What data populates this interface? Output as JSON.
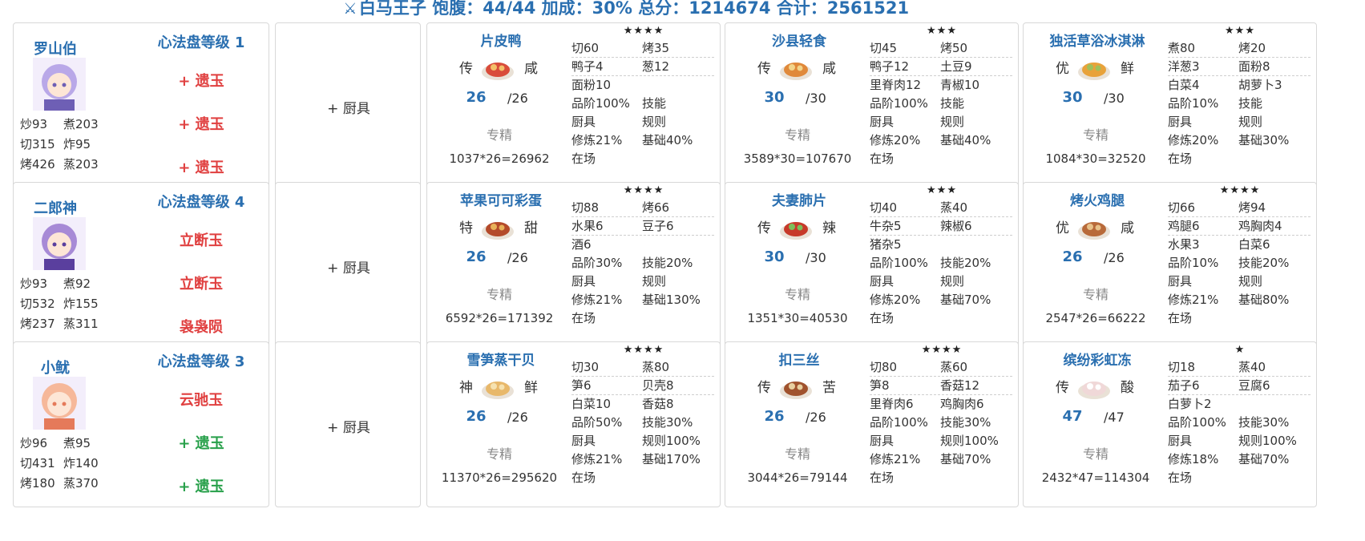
{
  "header": {
    "icon": "sword-icon",
    "text": "白马王子 饱腹：44/44 加成：30% 总分：1214674 合计：2561521"
  },
  "equip_label": "+ 厨具",
  "rows": [
    {
      "chef": {
        "name": "罗山伯",
        "level": "心法盘等级 1",
        "stats": [
          [
            "炒93",
            "煮203"
          ],
          [
            "切315",
            "炸95"
          ],
          [
            "烤426",
            "蒸203"
          ]
        ],
        "slots": [
          {
            "text": "+ 遗玉",
            "color": "red"
          },
          {
            "text": "+ 遗玉",
            "color": "red"
          },
          {
            "text": "+ 遗玉",
            "color": "red"
          }
        ]
      },
      "recipes": [
        {
          "name": "片皮鸭",
          "rarity": "传",
          "flavor": "咸",
          "qty": "26",
          "qmax": "/26",
          "spec": "专精",
          "formula": "1037*26=26962",
          "stars": "★★★★",
          "lines": [
            [
              "切60",
              "烤35"
            ],
            [
              "鸭子4",
              "葱12"
            ],
            [
              "面粉10",
              ""
            ],
            [
              "品阶100%",
              "技能"
            ],
            [
              "厨具",
              "规则"
            ],
            [
              "修炼21%",
              "基础40%"
            ],
            [
              "在场",
              ""
            ]
          ]
        },
        {
          "name": "沙县轻食",
          "rarity": "传",
          "flavor": "咸",
          "qty": "30",
          "qmax": "/30",
          "spec": "专精",
          "formula": "3589*30=107670",
          "stars": "★★★",
          "lines": [
            [
              "切45",
              "烤50"
            ],
            [
              "鸭子12",
              "土豆9"
            ],
            [
              "里脊肉12",
              "青椒10"
            ],
            [
              "品阶100%",
              "技能"
            ],
            [
              "厨具",
              "规则"
            ],
            [
              "修炼20%",
              "基础40%"
            ],
            [
              "在场",
              ""
            ]
          ]
        },
        {
          "name": "独活草浴冰淇淋",
          "rarity": "优",
          "flavor": "鲜",
          "qty": "30",
          "qmax": "/30",
          "spec": "专精",
          "formula": "1084*30=32520",
          "stars": "★★★",
          "lines": [
            [
              "煮80",
              "烤20"
            ],
            [
              "洋葱3",
              "面粉8"
            ],
            [
              "白菜4",
              "胡萝卜3"
            ],
            [
              "品阶10%",
              "技能"
            ],
            [
              "厨具",
              "规则"
            ],
            [
              "修炼20%",
              "基础30%"
            ],
            [
              "在场",
              ""
            ]
          ]
        }
      ]
    },
    {
      "chef": {
        "name": "二郎神",
        "level": "心法盘等级 4",
        "stats": [
          [
            "炒93",
            "煮92"
          ],
          [
            "切532",
            "炸155"
          ],
          [
            "烤237",
            "蒸311"
          ]
        ],
        "slots": [
          {
            "text": "立断玉",
            "color": "red"
          },
          {
            "text": "立断玉",
            "color": "red"
          },
          {
            "text": "袅袅陨",
            "color": "red"
          }
        ]
      },
      "recipes": [
        {
          "name": "苹果可可彩蛋",
          "rarity": "特",
          "flavor": "甜",
          "qty": "26",
          "qmax": "/26",
          "spec": "专精",
          "formula": "6592*26=171392",
          "stars": "★★★★",
          "lines": [
            [
              "切88",
              "烤66"
            ],
            [
              "水果6",
              "豆子6"
            ],
            [
              "酒6",
              ""
            ],
            [
              "品阶30%",
              "技能20%"
            ],
            [
              "厨具",
              "规则"
            ],
            [
              "修炼21%",
              "基础130%"
            ],
            [
              "在场",
              ""
            ]
          ]
        },
        {
          "name": "夫妻肺片",
          "rarity": "传",
          "flavor": "辣",
          "qty": "30",
          "qmax": "/30",
          "spec": "专精",
          "formula": "1351*30=40530",
          "stars": "★★★",
          "lines": [
            [
              "切40",
              "蒸40"
            ],
            [
              "牛杂5",
              "辣椒6"
            ],
            [
              "猪杂5",
              ""
            ],
            [
              "品阶100%",
              "技能20%"
            ],
            [
              "厨具",
              "规则"
            ],
            [
              "修炼20%",
              "基础70%"
            ],
            [
              "在场",
              ""
            ]
          ]
        },
        {
          "name": "烤火鸡腿",
          "rarity": "优",
          "flavor": "咸",
          "qty": "26",
          "qmax": "/26",
          "spec": "专精",
          "formula": "2547*26=66222",
          "stars": "★★★★",
          "lines": [
            [
              "切66",
              "烤94"
            ],
            [
              "鸡腿6",
              "鸡胸肉4"
            ],
            [
              "水果3",
              "白菜6"
            ],
            [
              "品阶10%",
              "技能20%"
            ],
            [
              "厨具",
              "规则"
            ],
            [
              "修炼21%",
              "基础80%"
            ],
            [
              "在场",
              ""
            ]
          ]
        }
      ]
    },
    {
      "chef": {
        "name": "小鱿",
        "level": "心法盘等级 3",
        "stats": [
          [
            "炒96",
            "煮95"
          ],
          [
            "切431",
            "炸140"
          ],
          [
            "烤180",
            "蒸370"
          ]
        ],
        "slots": [
          {
            "text": "云驰玉",
            "color": "red"
          },
          {
            "text": "+ 遗玉",
            "color": "green"
          },
          {
            "text": "+ 遗玉",
            "color": "green"
          }
        ]
      },
      "recipes": [
        {
          "name": "雪笋蒸干贝",
          "rarity": "神",
          "flavor": "鲜",
          "qty": "26",
          "qmax": "/26",
          "spec": "专精",
          "formula": "11370*26=295620",
          "stars": "★★★★",
          "lines": [
            [
              "切30",
              "蒸80"
            ],
            [
              "笋6",
              "贝壳8"
            ],
            [
              "白菜10",
              "香菇8"
            ],
            [
              "品阶50%",
              "技能30%"
            ],
            [
              "厨具",
              "规则100%"
            ],
            [
              "修炼21%",
              "基础170%"
            ],
            [
              "在场",
              ""
            ]
          ]
        },
        {
          "name": "扣三丝",
          "rarity": "传",
          "flavor": "苦",
          "qty": "26",
          "qmax": "/26",
          "spec": "专精",
          "formula": "3044*26=79144",
          "stars": "★★★★",
          "lines": [
            [
              "切80",
              "蒸60"
            ],
            [
              "笋8",
              "香菇12"
            ],
            [
              "里脊肉6",
              "鸡胸肉6"
            ],
            [
              "品阶100%",
              "技能30%"
            ],
            [
              "厨具",
              "规则100%"
            ],
            [
              "修炼21%",
              "基础70%"
            ],
            [
              "在场",
              ""
            ]
          ]
        },
        {
          "name": "缤纷彩虹冻",
          "rarity": "传",
          "flavor": "酸",
          "qty": "47",
          "qmax": "/47",
          "spec": "专精",
          "formula": "2432*47=114304",
          "stars": "★",
          "lines": [
            [
              "切18",
              "蒸40"
            ],
            [
              "茄子6",
              "豆腐6"
            ],
            [
              "白萝卜2",
              ""
            ],
            [
              "品阶100%",
              "技能30%"
            ],
            [
              "厨具",
              "规则100%"
            ],
            [
              "修炼18%",
              "基础70%"
            ],
            [
              "在场",
              ""
            ]
          ]
        }
      ]
    }
  ]
}
